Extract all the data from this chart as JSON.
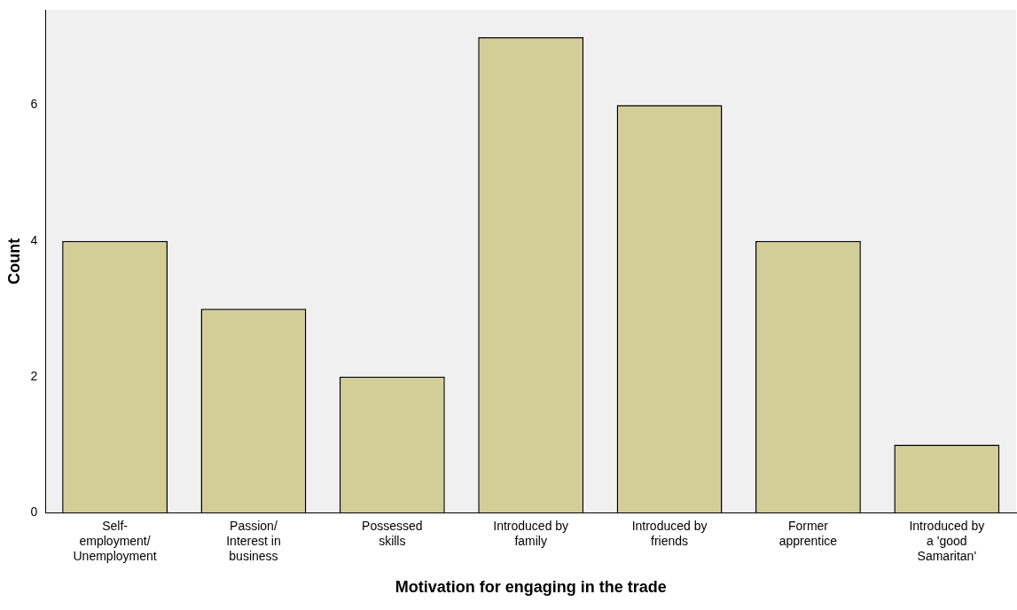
{
  "chart_data": {
    "type": "bar",
    "xlabel": "Motivation for engaging in the trade",
    "ylabel": "Count",
    "categories": [
      "Self-\nemployment/\nUnemployment",
      "Passion/\nInterest in\nbusiness",
      "Possessed\nskills",
      "Introduced by\nfamily",
      "Introduced by\nfriends",
      "Former\napprentice",
      "Introduced by\na 'good\nSamaritan'"
    ],
    "values": [
      4,
      3,
      2,
      7,
      6,
      4,
      1
    ],
    "color": "#d3ce98",
    "ylim": [
      0,
      7.4
    ],
    "yticks": [
      0,
      2,
      4,
      6
    ],
    "grid": false,
    "legend": false
  }
}
